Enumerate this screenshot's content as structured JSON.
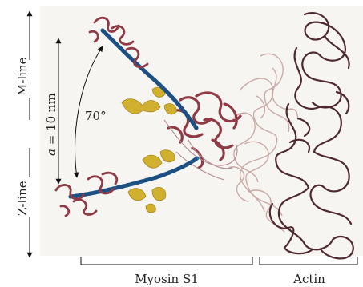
{
  "labels": {
    "m_line": "M-line",
    "z_line": "Z-line",
    "distance_var": "a",
    "distance_val": " = 10 nm",
    "angle": "70°",
    "myosin": "Myosin S1",
    "actin": "Actin"
  },
  "colors": {
    "panel_bg": "#f7f5f2",
    "helix_blue": "#2f72b0",
    "myosin_red": "#8f3a45",
    "myosin_yellow": "#d1b030",
    "actin_pale": "#c9aaa6",
    "actin_dark": "#4e2a30"
  }
}
